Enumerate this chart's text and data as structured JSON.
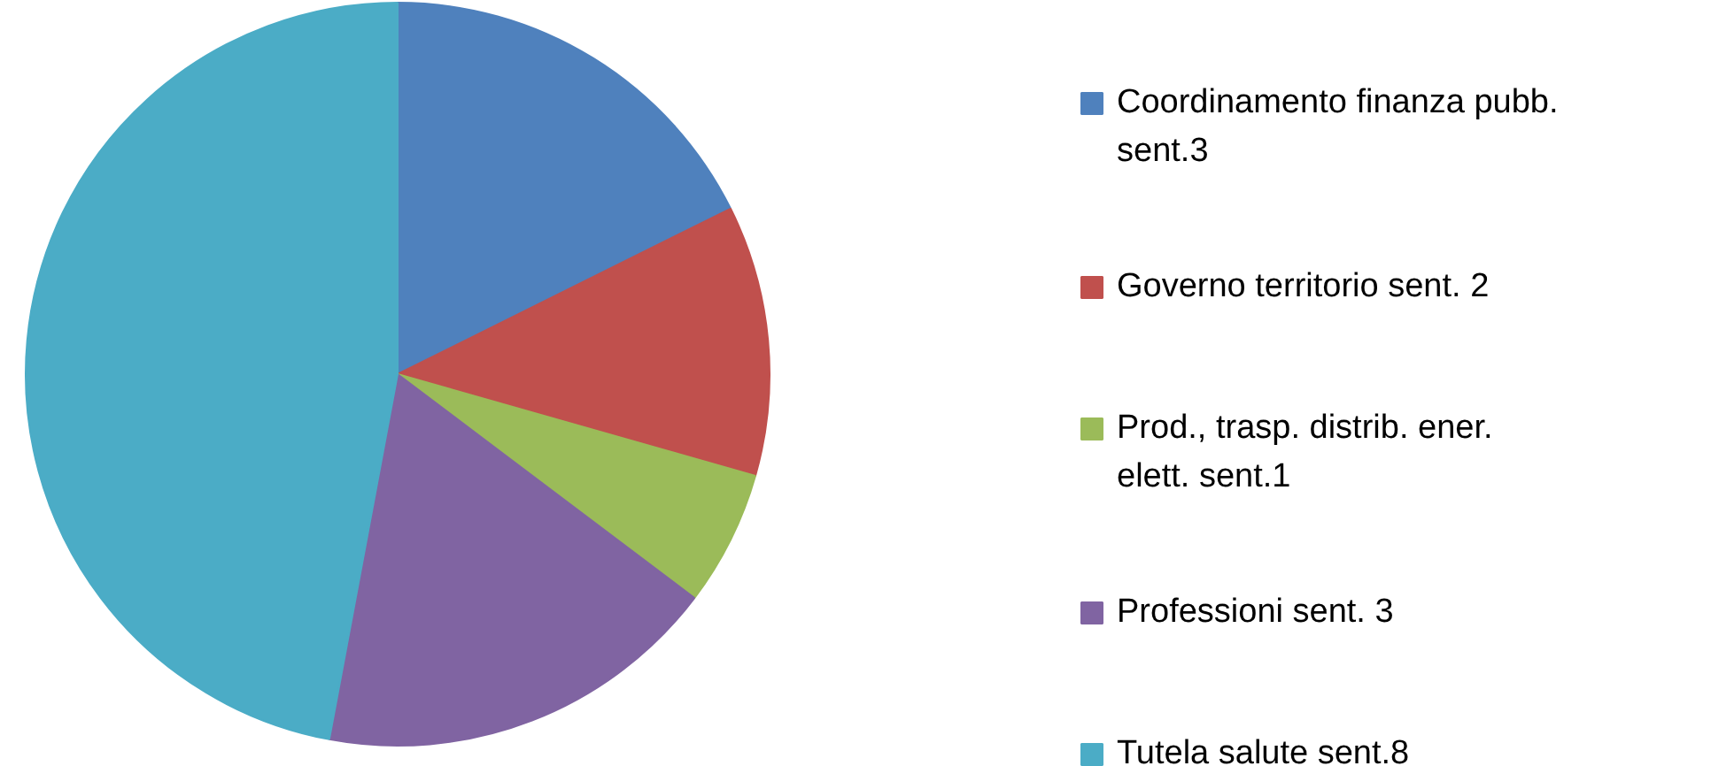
{
  "chart_data": {
    "type": "pie",
    "categories": [
      "Coordinamento finanza pubb. sent.3",
      "Governo territorio sent. 2",
      "Prod., trasp. distrib. ener. elett. sent.1",
      "Professioni sent. 3",
      "Tutela salute sent.8"
    ],
    "values": [
      3,
      2,
      1,
      3,
      8
    ],
    "colors": [
      "#4f81bd",
      "#c0504d",
      "#9bbb59",
      "#8064a2",
      "#4bacc6"
    ],
    "legend": "right"
  }
}
